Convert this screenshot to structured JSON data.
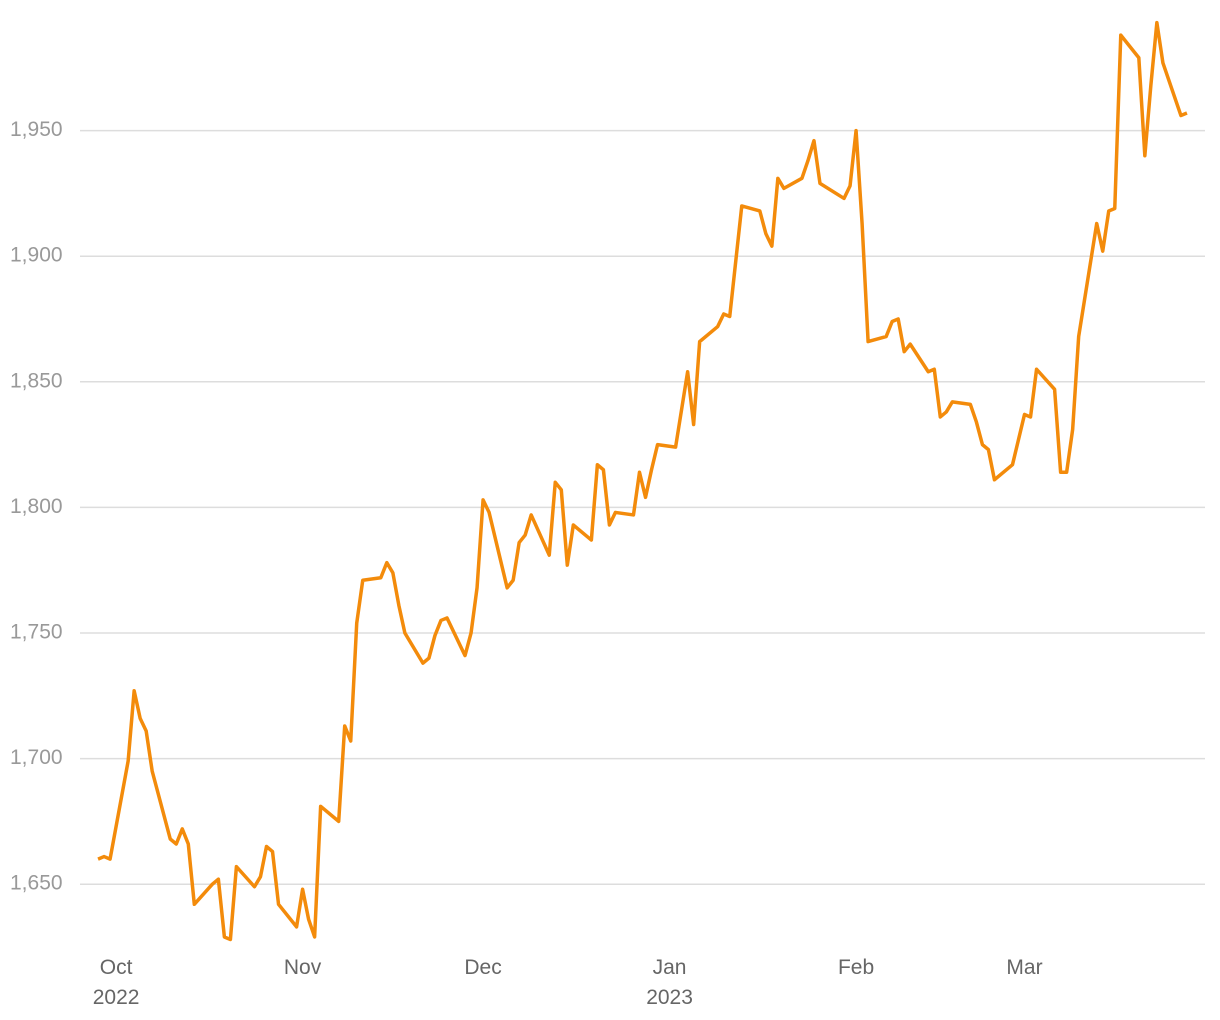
{
  "chart_data": {
    "type": "line",
    "color": "#f38b0b",
    "grid": true,
    "x": [
      -3,
      -2,
      -1,
      2,
      3,
      4,
      5,
      6,
      9,
      10,
      11,
      12,
      13,
      16,
      17,
      18,
      19,
      20,
      23,
      24,
      25,
      26,
      27,
      30,
      31,
      32,
      33,
      34,
      37,
      38,
      39,
      40,
      41,
      44,
      45,
      46,
      47,
      48,
      51,
      52,
      53,
      54,
      55,
      58,
      59,
      60,
      61,
      62,
      65,
      66,
      67,
      68,
      69,
      72,
      73,
      74,
      75,
      76,
      79,
      80,
      81,
      82,
      83,
      86,
      87,
      88,
      89,
      90,
      93,
      95,
      96,
      97,
      100,
      101,
      102,
      104,
      107,
      108,
      109,
      110,
      111,
      114,
      115,
      116,
      117,
      121,
      122,
      123,
      124,
      125,
      128,
      129,
      130,
      131,
      132,
      135,
      136,
      137,
      138,
      139,
      142,
      143,
      144,
      145,
      146,
      149,
      151,
      152,
      153,
      156,
      157,
      158,
      159,
      160,
      163,
      164,
      165,
      166,
      167,
      170,
      171,
      172,
      173,
      174,
      177,
      178
    ],
    "values": [
      1660,
      1661,
      1660,
      1699,
      1727,
      1716,
      1711,
      1695,
      1668,
      1666,
      1672,
      1666,
      1642,
      1650,
      1652,
      1629,
      1628,
      1657,
      1649,
      1653,
      1665,
      1663,
      1642,
      1633,
      1648,
      1636,
      1629,
      1681,
      1675,
      1713,
      1707,
      1754,
      1771,
      1772,
      1778,
      1774,
      1761,
      1750,
      1738,
      1740,
      1749,
      1755,
      1756,
      1741,
      1750,
      1768,
      1803,
      1798,
      1768,
      1771,
      1786,
      1789,
      1797,
      1781,
      1810,
      1807,
      1777,
      1793,
      1787,
      1817,
      1815,
      1793,
      1798,
      1797,
      1814,
      1804,
      1815,
      1825,
      1824,
      1854,
      1833,
      1866,
      1872,
      1877,
      1876,
      1920,
      1918,
      1909,
      1904,
      1931,
      1927,
      1931,
      1938,
      1946,
      1929,
      1923,
      1928,
      1950,
      1913,
      1866,
      1868,
      1874,
      1875,
      1862,
      1865,
      1854,
      1855,
      1836,
      1838,
      1842,
      1841,
      1834,
      1825,
      1823,
      1811,
      1817,
      1837,
      1836,
      1855,
      1847,
      1814,
      1814,
      1831,
      1868,
      1913,
      1902,
      1918,
      1919,
      1988,
      1979,
      1940,
      1968,
      1993,
      1977,
      1956,
      1957
    ],
    "xlim": [
      -6,
      181
    ],
    "xticks": [
      {
        "value": 0,
        "label": "Oct\n2022"
      },
      {
        "value": 31,
        "label": "Nov"
      },
      {
        "value": 61,
        "label": "Dec"
      },
      {
        "value": 92,
        "label": "Jan\n2023"
      },
      {
        "value": 123,
        "label": "Feb"
      },
      {
        "value": 151,
        "label": "Mar"
      }
    ],
    "ylim": [
      1625,
      2000
    ],
    "yticks": [
      {
        "value": 1650,
        "label": "1,650"
      },
      {
        "value": 1700,
        "label": "1,700"
      },
      {
        "value": 1750,
        "label": "1,750"
      },
      {
        "value": 1800,
        "label": "1,800"
      },
      {
        "value": 1850,
        "label": "1,850"
      },
      {
        "value": 1900,
        "label": "1,900"
      },
      {
        "value": 1950,
        "label": "1,950"
      }
    ]
  }
}
